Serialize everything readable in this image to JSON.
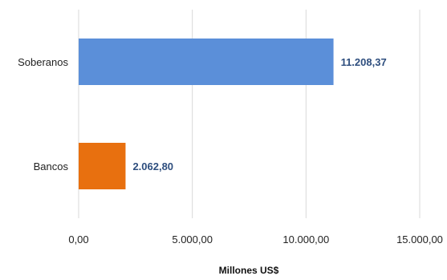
{
  "chart_data": {
    "type": "bar",
    "orientation": "horizontal",
    "categories": [
      "Soberanos",
      "Bancos"
    ],
    "values": [
      11208.37,
      2062.8
    ],
    "value_labels": [
      "11.208,37",
      "2.062,80"
    ],
    "colors": [
      "#5B8FD9",
      "#E8700F"
    ],
    "xlabel": "Millones  US$",
    "ylabel": "",
    "xlim": [
      0,
      15000
    ],
    "xticks": [
      0,
      5000,
      10000,
      15000
    ],
    "xtick_labels": [
      "0,00",
      "5.000,00",
      "10.000,00",
      "15.000,00"
    ],
    "grid": true,
    "legend": "none"
  }
}
